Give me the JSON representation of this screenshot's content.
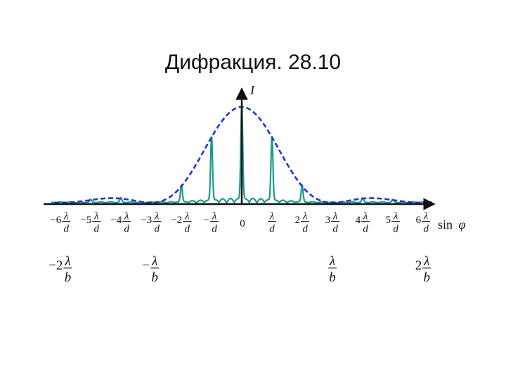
{
  "title": "Дифракция. 28.10",
  "axes": {
    "y_label": "I",
    "x_label": "sin",
    "x_symbol": "φ",
    "origin_label": "0"
  },
  "colors": {
    "axis": "#111111",
    "interference_curve": "#1a9a8f",
    "envelope_curve": "#1f36d0"
  },
  "ticks_d": [
    {
      "coef": "−6",
      "num": "λ",
      "den": "d",
      "value": -6
    },
    {
      "coef": "−5",
      "num": "λ",
      "den": "d",
      "value": -5
    },
    {
      "coef": "−4",
      "num": "λ",
      "den": "d",
      "value": -4
    },
    {
      "coef": "−3",
      "num": "λ",
      "den": "d",
      "value": -3
    },
    {
      "coef": "−2",
      "num": "λ",
      "den": "d",
      "value": -2
    },
    {
      "coef": "−",
      "num": "λ",
      "den": "d",
      "value": -1
    },
    {
      "coef": "",
      "num": "λ",
      "den": "d",
      "value": 1
    },
    {
      "coef": "2",
      "num": "λ",
      "den": "d",
      "value": 2
    },
    {
      "coef": "3",
      "num": "λ",
      "den": "d",
      "value": 3
    },
    {
      "coef": "4",
      "num": "λ",
      "den": "d",
      "value": 4
    },
    {
      "coef": "5",
      "num": "λ",
      "den": "d",
      "value": 5
    },
    {
      "coef": "6",
      "num": "λ",
      "den": "d",
      "value": 6
    }
  ],
  "ticks_b": [
    {
      "coef": "−2",
      "num": "λ",
      "den": "b",
      "value": -2
    },
    {
      "coef": "−",
      "num": "λ",
      "den": "b",
      "value": -1
    },
    {
      "coef": "",
      "num": "λ",
      "den": "b",
      "value": 1
    },
    {
      "coef": "2",
      "num": "λ",
      "den": "b",
      "value": 2
    }
  ],
  "chart_data": {
    "type": "line",
    "x_unit": "λ/d",
    "d_over_b": 3,
    "principal_maxima": {
      "x": [
        -6,
        -5,
        -4,
        -3,
        -2,
        -1,
        0,
        1,
        2,
        3,
        4,
        5,
        6
      ],
      "relative_intensity": [
        0,
        0.05,
        0.1,
        0,
        0.25,
        0.68,
        1.0,
        0.68,
        0.25,
        0,
        0.1,
        0.05,
        0
      ]
    },
    "envelope": "single-slit diffraction envelope, zeros at ±λ/b and ±2λ/b",
    "series": [
      {
        "name": "",
        "style": "solid"
      },
      {
        "name": "",
        "style": "dashed"
      }
    ]
  }
}
